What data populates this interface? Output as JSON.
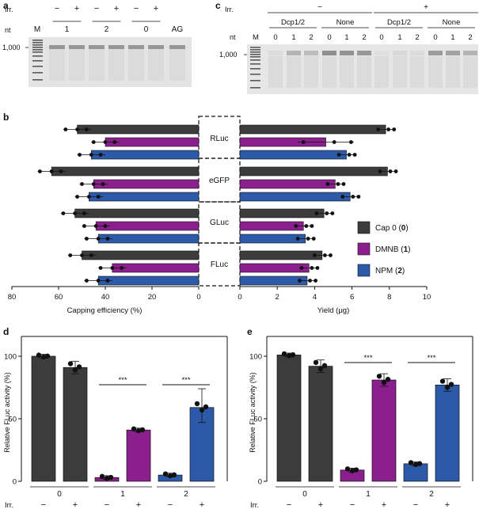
{
  "colors": {
    "cap0": "#3c3c3c",
    "dmnb": "#8b1f8e",
    "npm": "#2d5aa8",
    "gel_bg": "#e4e4e4",
    "gel_band": "#8a8a8a",
    "text": "#111111"
  },
  "panel_a": {
    "letter": "a",
    "irr_label": "Irr.",
    "irr_signs": [
      "−",
      "+",
      "−",
      "+",
      "−",
      "+"
    ],
    "nt_label": "nt",
    "marker_label": "M",
    "groups": [
      "1",
      "2",
      "0"
    ],
    "ag_label": "AG",
    "size_label": "1,000"
  },
  "panel_c": {
    "letter": "c",
    "irr_label": "Irr.",
    "irr_groups": [
      "−",
      "+"
    ],
    "conditions": [
      "Dcp1/2",
      "None",
      "Dcp1/2",
      "None"
    ],
    "nt_label": "nt",
    "marker_label": "M",
    "lane_labels": [
      "0",
      "1",
      "2",
      "0",
      "1",
      "2",
      "0",
      "1",
      "2",
      "0",
      "1",
      "2"
    ],
    "size_label": "1,000"
  },
  "chart_data": [
    {
      "panel": "b",
      "type": "bar",
      "orientation": "horizontal",
      "categories": [
        "RLuc",
        "eGFP",
        "GLuc",
        "FLuc"
      ],
      "series": [
        {
          "name": "Cap 0",
          "label_prefix": "Cap 0 (",
          "label_bold": "0",
          "label_suffix": ")",
          "capping_efficiency": [
            52,
            63,
            53,
            50
          ],
          "yield": [
            7.8,
            7.9,
            4.5,
            4.4
          ]
        },
        {
          "name": "DMNB",
          "label_prefix": "DMNB (",
          "label_bold": "1",
          "label_suffix": ")",
          "capping_efficiency": [
            40,
            45,
            44,
            37
          ],
          "yield": [
            4.6,
            5.1,
            3.4,
            3.7
          ]
        },
        {
          "name": "NPM",
          "label_prefix": "NPM (",
          "label_bold": "2",
          "label_suffix": ")",
          "capping_efficiency": [
            46,
            47,
            43,
            43
          ],
          "yield": [
            5.7,
            5.9,
            3.5,
            3.6
          ]
        }
      ],
      "left_axis": {
        "xlabel": "Capping efficiency (%)",
        "xlim": [
          80,
          0
        ],
        "ticks": [
          "80",
          "60",
          "40",
          "20",
          "0"
        ]
      },
      "right_axis": {
        "xlabel": "Yield (μg)",
        "xlim": [
          0,
          10
        ],
        "ticks": [
          "0",
          "2",
          "4",
          "6",
          "8",
          "10"
        ]
      },
      "legend_position": "right"
    },
    {
      "panel": "d",
      "type": "bar",
      "ylabel": "Relative FLuc activity (%)",
      "ylim": [
        0,
        110
      ],
      "yticks": [
        "0",
        "50",
        "100"
      ],
      "groups": [
        "0",
        "1",
        "2"
      ],
      "irr_label": "Irr.",
      "irr_signs": [
        "−",
        "+",
        "−",
        "+",
        "−",
        "+"
      ],
      "values": [
        100,
        91,
        3,
        41,
        5,
        59
      ],
      "bar_colors": [
        "cap0",
        "cap0",
        "dmnb",
        "dmnb",
        "npm",
        "npm"
      ],
      "significance": [
        {
          "label": "***",
          "group": "1"
        },
        {
          "label": "***",
          "group": "2"
        }
      ]
    },
    {
      "panel": "e",
      "type": "bar",
      "ylabel": "Relative FLuc activity (%)",
      "ylim": [
        0,
        110
      ],
      "yticks": [
        "0",
        "50",
        "100"
      ],
      "groups": [
        "0",
        "1",
        "2"
      ],
      "irr_label": "Irr.",
      "irr_signs": [
        "−",
        "+",
        "−",
        "+",
        "−",
        "+"
      ],
      "values": [
        101,
        92,
        9,
        81,
        14,
        77
      ],
      "bar_colors": [
        "cap0",
        "cap0",
        "dmnb",
        "dmnb",
        "npm",
        "npm"
      ],
      "significance": [
        {
          "label": "***",
          "group": "1"
        },
        {
          "label": "***",
          "group": "2"
        }
      ]
    }
  ]
}
